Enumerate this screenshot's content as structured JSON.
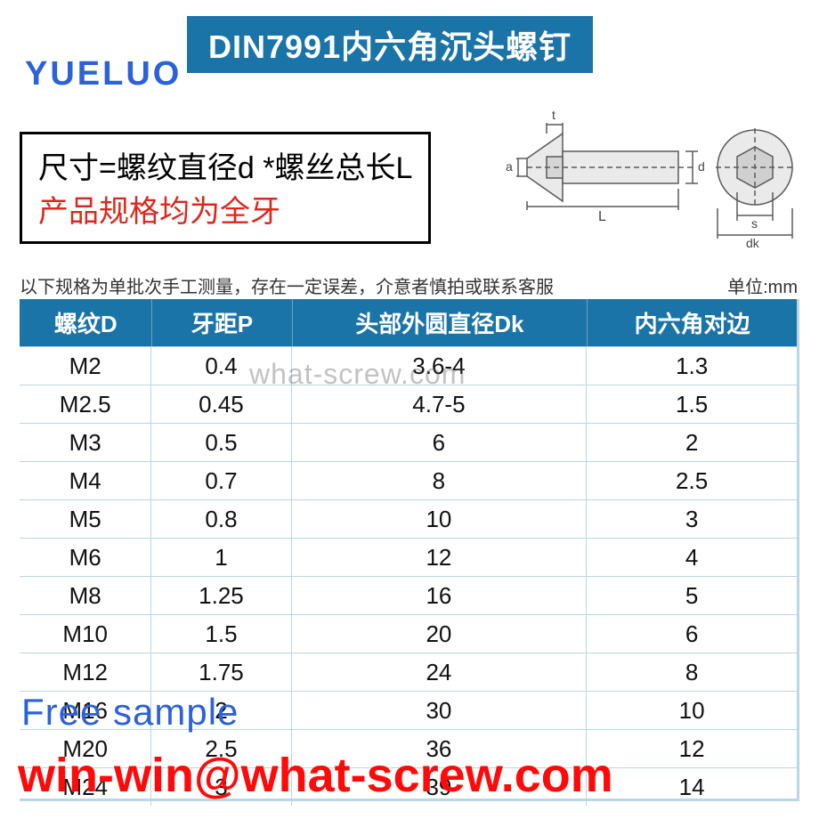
{
  "colors": {
    "banner_bg": "#1b74a8",
    "table_header_bg": "#1b74a8",
    "grid": "#b9d6e4",
    "logo": "#2b62d9",
    "spec_red": "#e0261c",
    "free_sample": "#2b62d9",
    "email": "#ff0a0a"
  },
  "header": {
    "title": "DIN7991内六角沉头螺钉",
    "logo": "YUELUO"
  },
  "spec_box": {
    "line1": "尺寸=螺纹直径d *螺丝总长L",
    "line2": "产品规格均为全牙"
  },
  "notes": {
    "left": "以下规格为单批次手工测量，存在一定误差，介意者慎拍或联系客服",
    "right": "单位:mm"
  },
  "table": {
    "columns": [
      "螺纹D",
      "牙距P",
      "头部外圆直径Dk",
      "内六角对边"
    ],
    "rows": [
      [
        "M2",
        "0.4",
        "3.6-4",
        "1.3"
      ],
      [
        "M2.5",
        "0.45",
        "4.7-5",
        "1.5"
      ],
      [
        "M3",
        "0.5",
        "6",
        "2"
      ],
      [
        "M4",
        "0.7",
        "8",
        "2.5"
      ],
      [
        "M5",
        "0.8",
        "10",
        "3"
      ],
      [
        "M6",
        "1",
        "12",
        "4"
      ],
      [
        "M8",
        "1.25",
        "16",
        "5"
      ],
      [
        "M10",
        "1.5",
        "20",
        "6"
      ],
      [
        "M12",
        "1.75",
        "24",
        "8"
      ],
      [
        "M16",
        "2",
        "30",
        "10"
      ],
      [
        "M20",
        "2.5",
        "36",
        "12"
      ],
      [
        "M24",
        "3",
        "39",
        "14"
      ]
    ]
  },
  "watermarks": {
    "center": "what-screw.com",
    "free_sample": "Free sample",
    "email": "win-win@what-screw.com"
  },
  "diagram": {
    "labels": {
      "t": "t",
      "a": "a",
      "d": "d",
      "L": "L",
      "s": "s",
      "dk": "dk"
    },
    "stroke": "#5a5a5a",
    "fill": "#e8e8e8"
  }
}
